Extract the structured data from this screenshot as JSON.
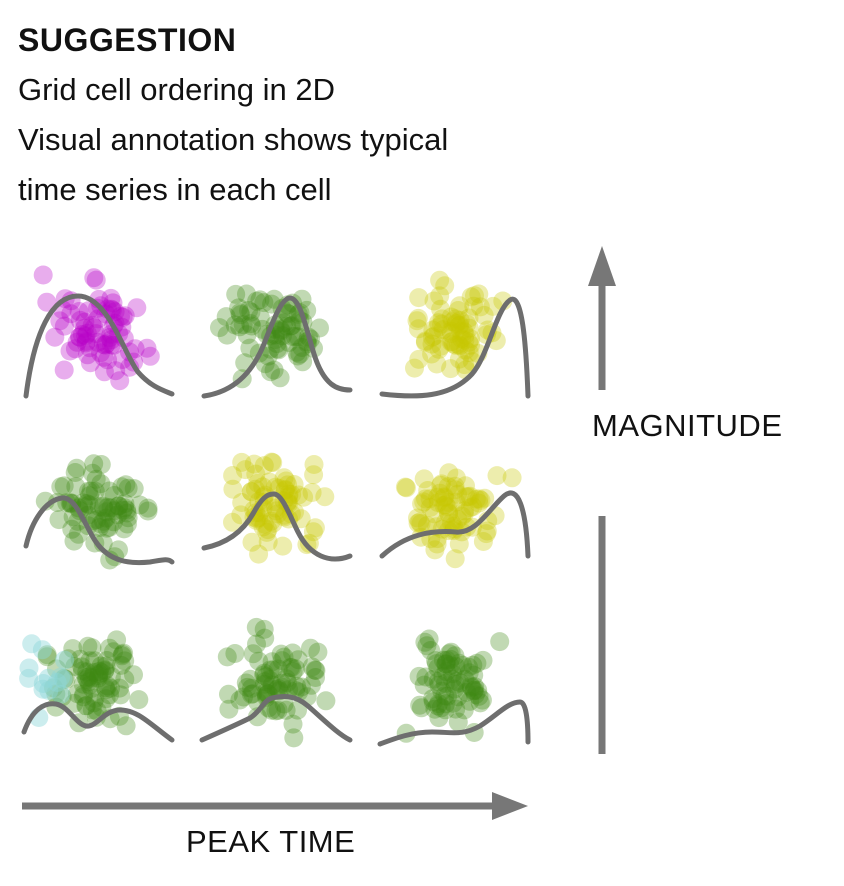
{
  "heading": "SUGGESTION",
  "description": [
    "Grid cell ordering in 2D",
    "Visual annotation shows typical",
    "time series in each cell"
  ],
  "axes": {
    "vertical_label": "MAGNITUDE",
    "horizontal_label": "PEAK TIME",
    "arrow_color": "#777777"
  },
  "curve_color": "#6e6e6e",
  "colors": {
    "magenta": "#b800c8",
    "green": "#3d8a12",
    "yellow": "#c7c700",
    "cyan": "#8fd6da"
  },
  "grid": [
    [
      {
        "color": "magenta",
        "curve": "early-peak"
      },
      {
        "color": "green",
        "curve": "mid-peak"
      },
      {
        "color": "yellow",
        "curve": "late-peak"
      }
    ],
    [
      {
        "color": "green",
        "curve": "early-peak"
      },
      {
        "color": "yellow",
        "curve": "mid-peak"
      },
      {
        "color": "yellow",
        "curve": "late-peak"
      }
    ],
    [
      {
        "color": "green",
        "curve": "early-peak",
        "secondary_color": "cyan"
      },
      {
        "color": "green",
        "curve": "mid-peak"
      },
      {
        "color": "green",
        "curve": "late-peak"
      }
    ]
  ]
}
